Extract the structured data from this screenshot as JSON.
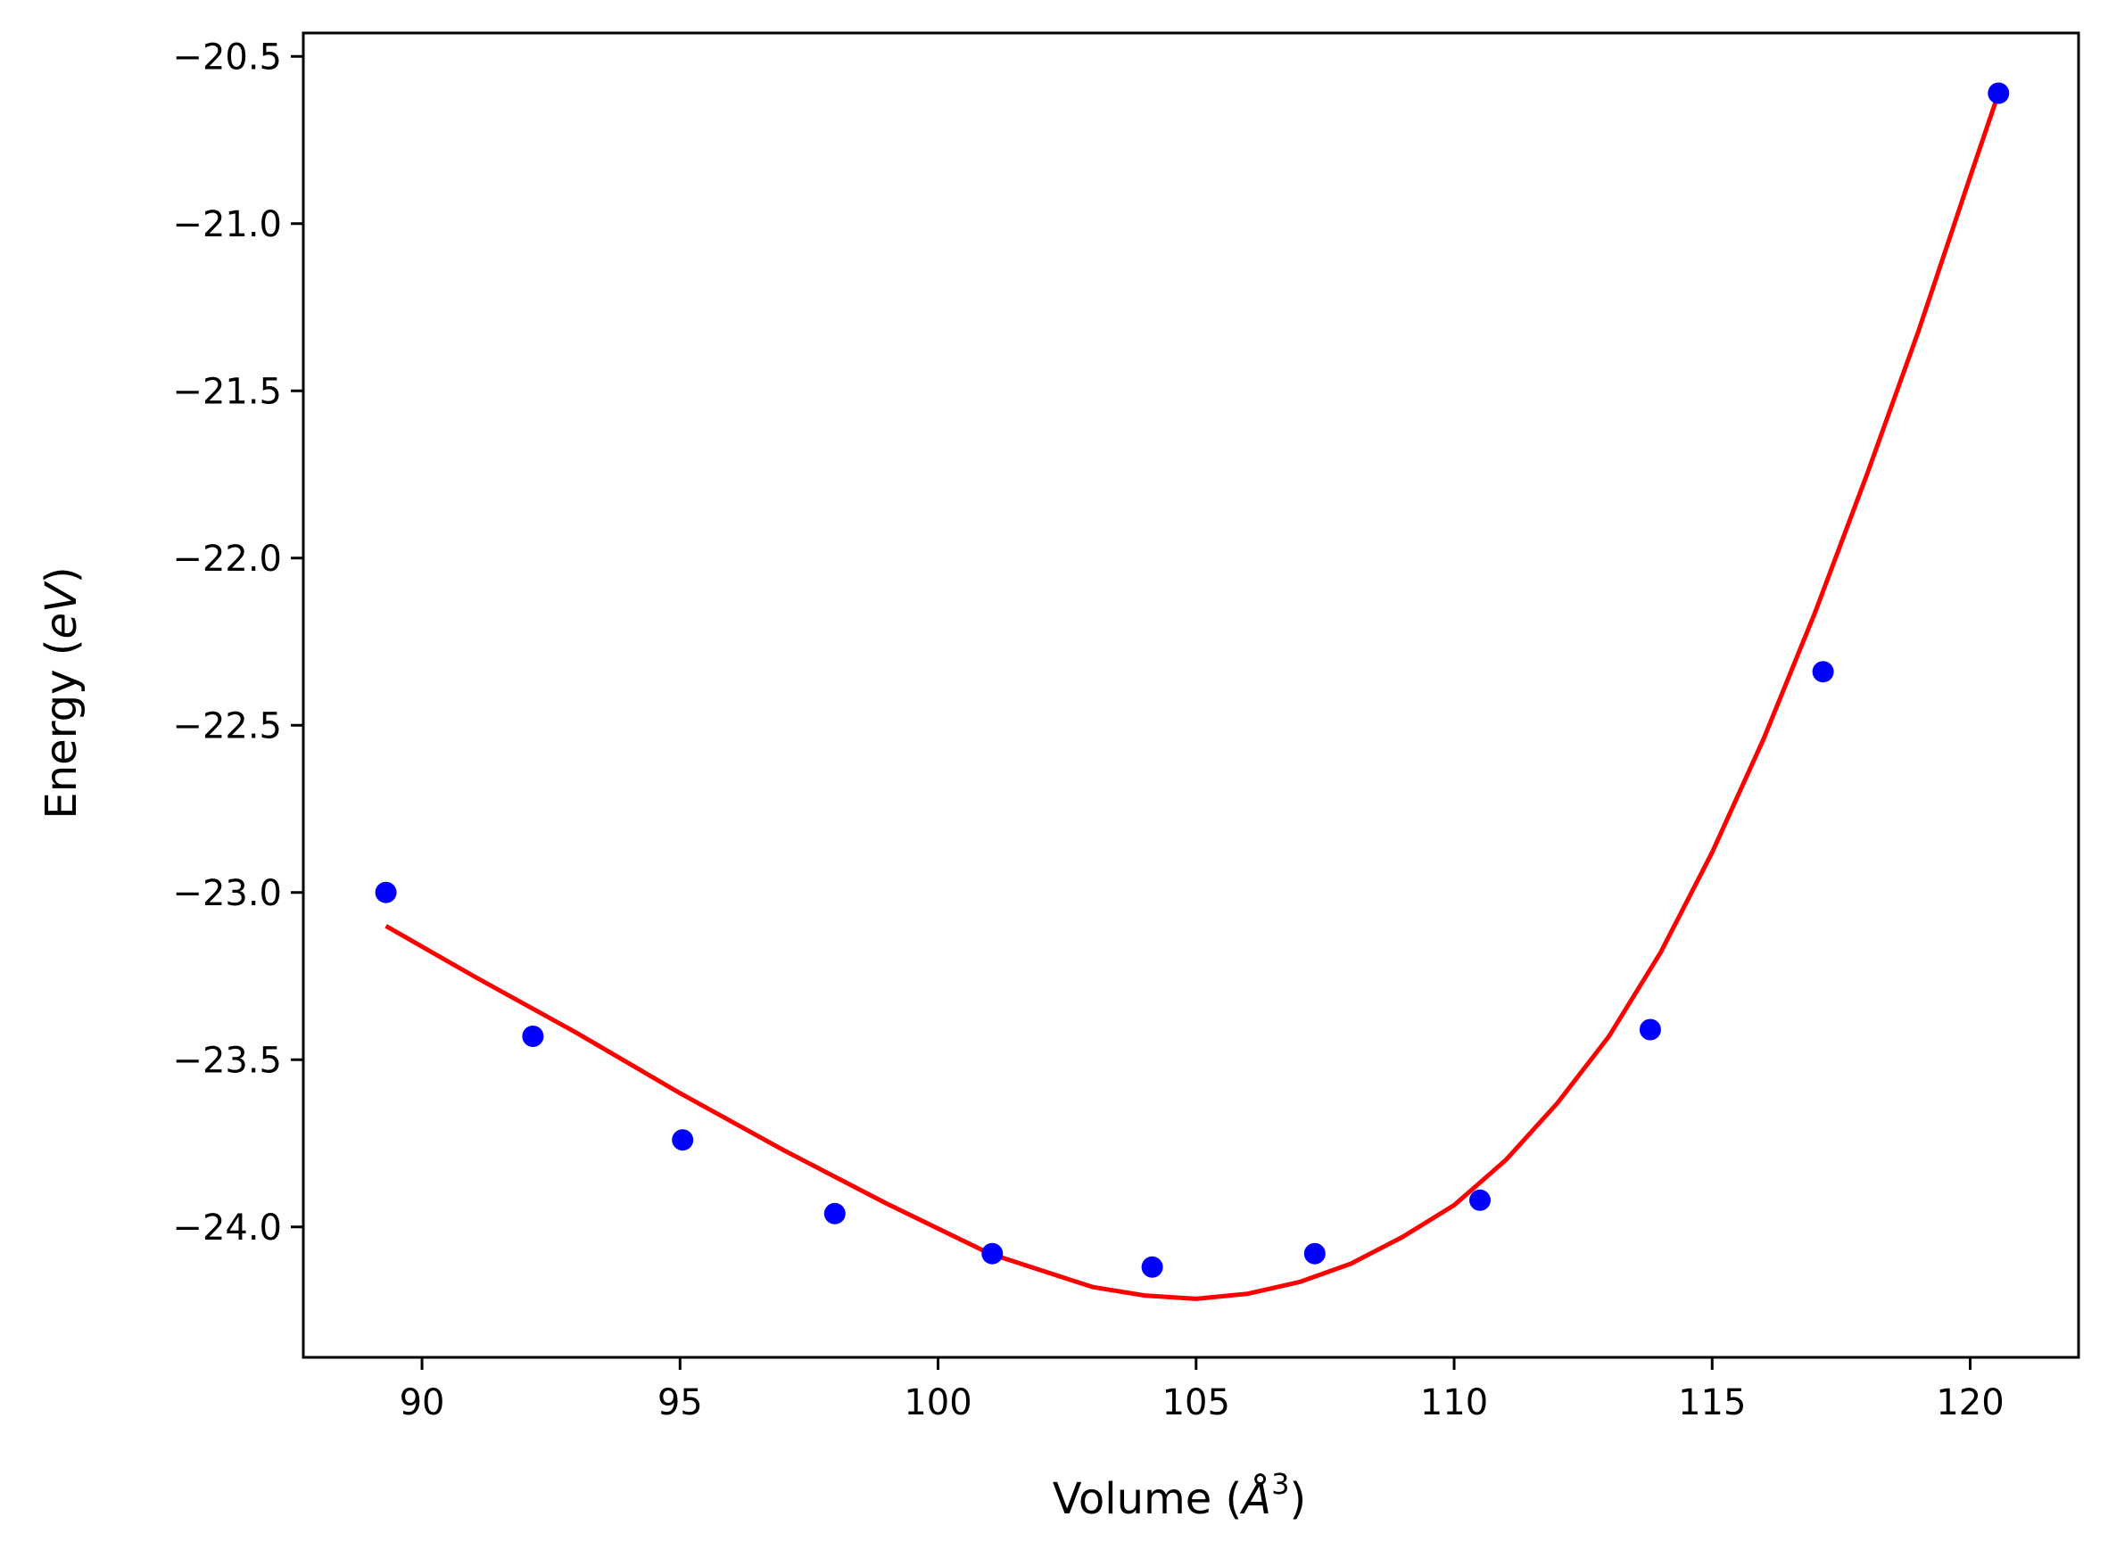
{
  "chart_data": {
    "type": "scatter",
    "xlabel_main": "Volume (",
    "xlabel_unit": "Å",
    "xlabel_exp": "3",
    "xlabel_close": ")",
    "ylabel_main": "Energy (",
    "ylabel_unit": "eV",
    "ylabel_close": ")",
    "xlim": [
      87.7,
      122.1
    ],
    "ylim": [
      -24.39,
      -20.43
    ],
    "xticks": [
      90,
      95,
      100,
      105,
      110,
      115,
      120
    ],
    "xtick_labels": [
      "90",
      "95",
      "100",
      "105",
      "110",
      "115",
      "120"
    ],
    "yticks": [
      -20.5,
      -21.0,
      -21.5,
      -22.0,
      -22.5,
      -23.0,
      -23.5,
      -24.0
    ],
    "ytick_labels": [
      "−20.5",
      "−21.0",
      "−21.5",
      "−22.0",
      "−22.5",
      "−23.0",
      "−23.5",
      "−24.0"
    ],
    "grid": false,
    "colors": {
      "points": "#0000ff",
      "fit": "#ff0000",
      "axes": "#000000"
    },
    "points": {
      "x": [
        89.3,
        92.15,
        95.05,
        98.0,
        101.05,
        104.15,
        107.3,
        110.5,
        113.8,
        117.15,
        120.55
      ],
      "y": [
        -23.0,
        -23.43,
        -23.74,
        -23.96,
        -24.08,
        -24.12,
        -24.08,
        -23.92,
        -23.41,
        -22.34,
        -20.61
      ]
    },
    "fit": {
      "x": [
        89.3,
        91.0,
        93.0,
        95.0,
        97.0,
        99.0,
        101.0,
        103.0,
        104.0,
        105.0,
        106.0,
        107.0,
        108.0,
        109.0,
        110.0,
        111.0,
        112.0,
        113.0,
        114.0,
        115.0,
        116.0,
        117.0,
        118.0,
        119.0,
        120.0,
        120.55
      ],
      "y": [
        -23.1,
        -23.25,
        -23.42,
        -23.6,
        -23.77,
        -23.93,
        -24.08,
        -24.18,
        -24.205,
        -24.215,
        -24.2,
        -24.165,
        -24.11,
        -24.03,
        -23.935,
        -23.8,
        -23.63,
        -23.43,
        -23.18,
        -22.88,
        -22.54,
        -22.16,
        -21.75,
        -21.32,
        -20.86,
        -20.61
      ]
    }
  }
}
